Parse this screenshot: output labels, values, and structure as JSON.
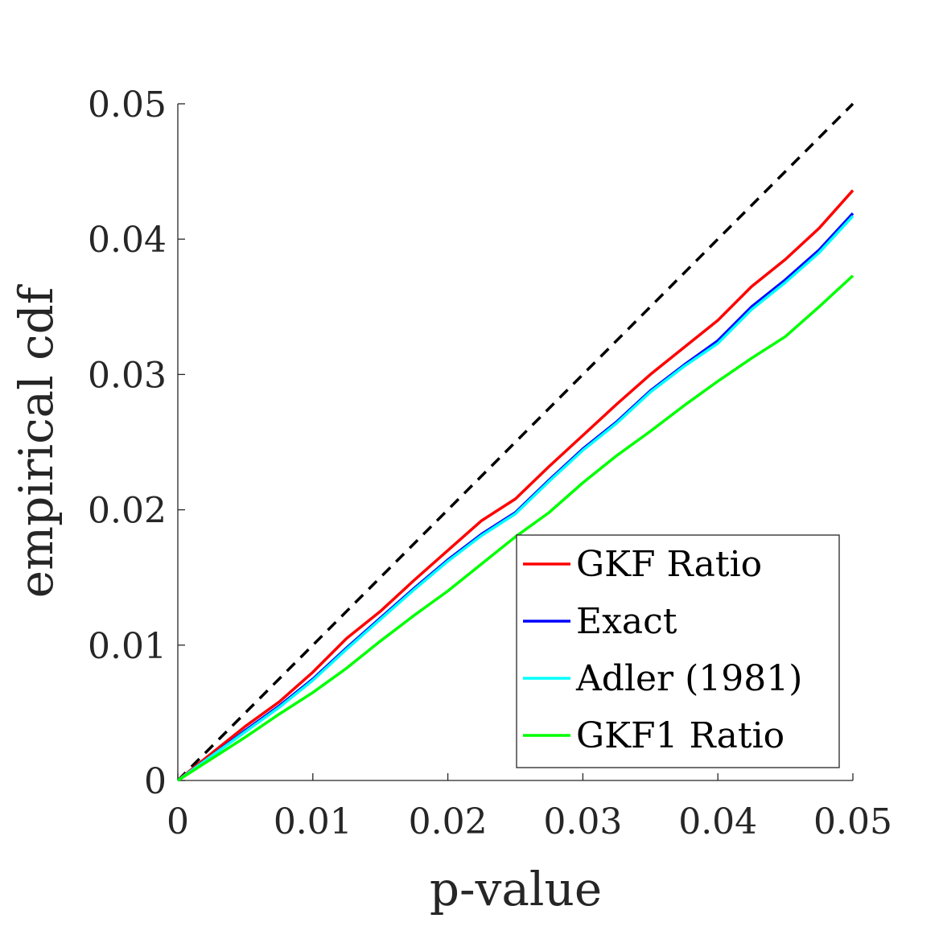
{
  "chart_data": {
    "type": "line",
    "title": "",
    "xlabel": "p-value",
    "ylabel": "empirical cdf",
    "xlim": [
      0,
      0.05
    ],
    "ylim": [
      0,
      0.05
    ],
    "xticks": [
      "0",
      "0.01",
      "0.02",
      "0.03",
      "0.04",
      "0.05"
    ],
    "yticks": [
      "0",
      "0.01",
      "0.02",
      "0.03",
      "0.04",
      "0.05"
    ],
    "grid": false,
    "legend_position": "bottom-right",
    "reference_line": {
      "x": [
        0,
        0.05
      ],
      "y": [
        0,
        0.05
      ],
      "color": "#000000",
      "style": "dashed"
    },
    "series": [
      {
        "name": "GKF Ratio",
        "color": "#ff0000",
        "x": [
          0,
          0.0025,
          0.005,
          0.0075,
          0.01,
          0.0125,
          0.015,
          0.0175,
          0.02,
          0.0225,
          0.025,
          0.0275,
          0.03,
          0.0325,
          0.035,
          0.0375,
          0.04,
          0.0425,
          0.045,
          0.0475,
          0.05
        ],
        "y": [
          0,
          0.002,
          0.004,
          0.0058,
          0.008,
          0.0105,
          0.0125,
          0.0148,
          0.017,
          0.0192,
          0.0208,
          0.0232,
          0.0255,
          0.0278,
          0.03,
          0.032,
          0.034,
          0.0365,
          0.0385,
          0.0408,
          0.0436
        ]
      },
      {
        "name": "Exact",
        "color": "#0000ff",
        "x": [
          0,
          0.0025,
          0.005,
          0.0075,
          0.01,
          0.0125,
          0.015,
          0.0175,
          0.02,
          0.0225,
          0.025,
          0.0275,
          0.03,
          0.0325,
          0.035,
          0.0375,
          0.04,
          0.0425,
          0.045,
          0.0475,
          0.05
        ],
        "y": [
          0,
          0.0018,
          0.0037,
          0.0055,
          0.0075,
          0.0098,
          0.012,
          0.0142,
          0.0163,
          0.0182,
          0.0198,
          0.0222,
          0.0245,
          0.0265,
          0.0288,
          0.0307,
          0.0325,
          0.035,
          0.037,
          0.0392,
          0.0419
        ]
      },
      {
        "name": "Adler (1981)",
        "color": "#00ffff",
        "x": [
          0,
          0.0025,
          0.005,
          0.0075,
          0.01,
          0.0125,
          0.015,
          0.0175,
          0.02,
          0.0225,
          0.025,
          0.0275,
          0.03,
          0.0325,
          0.035,
          0.0375,
          0.04,
          0.0425,
          0.045,
          0.0475,
          0.05
        ],
        "y": [
          0,
          0.0018,
          0.0036,
          0.0054,
          0.0074,
          0.0097,
          0.0119,
          0.0141,
          0.0162,
          0.0181,
          0.0197,
          0.0221,
          0.0244,
          0.0264,
          0.0287,
          0.0306,
          0.0323,
          0.0348,
          0.0368,
          0.039,
          0.0417
        ]
      },
      {
        "name": "GKF1 Ratio",
        "color": "#00ff00",
        "x": [
          0,
          0.0025,
          0.005,
          0.0075,
          0.01,
          0.0125,
          0.015,
          0.0175,
          0.02,
          0.0225,
          0.025,
          0.0275,
          0.03,
          0.0325,
          0.035,
          0.0375,
          0.04,
          0.0425,
          0.045,
          0.0475,
          0.05
        ],
        "y": [
          0,
          0.0016,
          0.0032,
          0.0049,
          0.0065,
          0.0083,
          0.0103,
          0.0122,
          0.014,
          0.016,
          0.018,
          0.0198,
          0.022,
          0.024,
          0.0258,
          0.0277,
          0.0295,
          0.0312,
          0.0328,
          0.035,
          0.0373
        ]
      }
    ]
  }
}
